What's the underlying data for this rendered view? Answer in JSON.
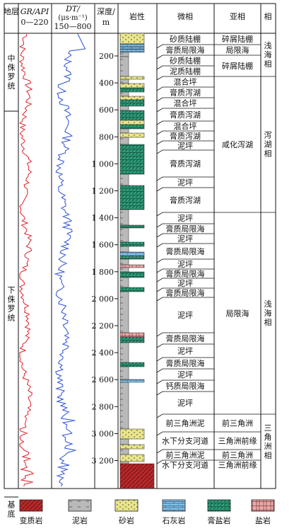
{
  "header": {
    "stratum": "地层",
    "gr_label": "GR/API",
    "gr_range": "0—220",
    "dt_label": "DT/",
    "dt_unit": "(μs·m⁻¹)",
    "dt_range": "150—800",
    "depth_label": "深度/",
    "depth_unit": "m",
    "lithology": "岩性",
    "microfacies": "微相",
    "subfacies": "亚相",
    "facies": "相"
  },
  "strata": [
    {
      "name": "中侏罗统",
      "top": 0,
      "bottom": 110
    },
    {
      "name": "下侏罗统",
      "top": 110,
      "bottom": 655
    },
    {
      "name": "基底",
      "top": 655,
      "bottom": 690
    }
  ],
  "depth_ticks": [
    "200",
    "400",
    "600",
    "800",
    "1 000",
    "1 200",
    "1 400",
    "1 600",
    "1 800",
    "2 000",
    "2 200",
    "2 400",
    "2 600",
    "2 800",
    "3 000",
    "3 200"
  ],
  "microfacies": [
    {
      "label": "砂质陆棚",
      "top": 47,
      "bottom": 63
    },
    {
      "label": "膏质局限海",
      "top": 63,
      "bottom": 78
    },
    {
      "label": "砂质陆棚",
      "top": 78,
      "bottom": 93
    },
    {
      "label": "泥质陆棚",
      "top": 93,
      "bottom": 108
    },
    {
      "label": "混合坪",
      "top": 108,
      "bottom": 123
    },
    {
      "label": "膏质泻湖",
      "top": 123,
      "bottom": 138
    },
    {
      "label": "混合坪",
      "top": 138,
      "bottom": 153
    },
    {
      "label": "膏质泻湖",
      "top": 153,
      "bottom": 171
    },
    {
      "label": "混合坪",
      "top": 171,
      "bottom": 185
    },
    {
      "label": "膏质泻湖",
      "top": 185,
      "bottom": 199
    },
    {
      "label": "泥坪",
      "top": 199,
      "bottom": 212
    },
    {
      "label": "膏质泻湖",
      "top": 212,
      "bottom": 250
    },
    {
      "label": "泥坪",
      "top": 250,
      "bottom": 265
    },
    {
      "label": "膏质泻湖",
      "top": 265,
      "bottom": 300
    },
    {
      "label": "泥坪",
      "top": 300,
      "bottom": 316
    },
    {
      "label": "膏质局限海",
      "top": 316,
      "bottom": 330
    },
    {
      "label": "泥坪",
      "top": 330,
      "bottom": 344
    },
    {
      "label": "膏质局限海",
      "top": 344,
      "bottom": 366
    },
    {
      "label": "泥坪",
      "top": 366,
      "bottom": 380
    },
    {
      "label": "膏质局限海",
      "top": 380,
      "bottom": 393
    },
    {
      "label": "泥坪",
      "top": 393,
      "bottom": 407
    },
    {
      "label": "膏质局限海",
      "top": 407,
      "bottom": 420
    },
    {
      "label": "泥坪",
      "top": 420,
      "bottom": 470
    },
    {
      "label": "膏质局限海",
      "top": 470,
      "bottom": 486
    },
    {
      "label": "泥坪",
      "top": 486,
      "bottom": 505
    },
    {
      "label": "膏质局限海",
      "top": 505,
      "bottom": 521
    },
    {
      "label": "泥坪",
      "top": 521,
      "bottom": 537
    },
    {
      "label": "钙质局限海",
      "top": 537,
      "bottom": 553
    },
    {
      "label": "泥坪",
      "top": 553,
      "bottom": 585
    },
    {
      "label": "前三角洲泥",
      "top": 585,
      "bottom": 610
    },
    {
      "label": "水下分支河道",
      "top": 610,
      "bottom": 635
    },
    {
      "label": "前三角洲泥",
      "top": 635,
      "bottom": 650
    },
    {
      "label": "水下分支河道",
      "top": 650,
      "bottom": 663
    }
  ],
  "subfacies": [
    {
      "label": "碎屑陆棚",
      "top": 47,
      "bottom": 63
    },
    {
      "label": "局限海",
      "top": 63,
      "bottom": 78
    },
    {
      "label": "碎屑陆棚",
      "top": 78,
      "bottom": 108
    },
    {
      "label": "咸化泻湖",
      "top": 108,
      "bottom": 300
    },
    {
      "label": "局限海",
      "top": 300,
      "bottom": 585
    },
    {
      "label": "前三角洲",
      "top": 585,
      "bottom": 610
    },
    {
      "label": "三角洲前缘",
      "top": 610,
      "bottom": 635
    },
    {
      "label": "前三角洲",
      "top": 635,
      "bottom": 650
    },
    {
      "label": "三角洲前缘",
      "top": 650,
      "bottom": 663
    }
  ],
  "facies": [
    {
      "label": "浅海相",
      "top": 47,
      "bottom": 108
    },
    {
      "label": "泻湖相",
      "top": 108,
      "bottom": 300
    },
    {
      "label": "浅海相",
      "top": 300,
      "bottom": 585
    },
    {
      "label": "三角洲相",
      "top": 585,
      "bottom": 663
    }
  ],
  "legend": [
    {
      "key": "metamorphic",
      "label": "变质岩"
    },
    {
      "key": "mudstone",
      "label": "泥岩"
    },
    {
      "key": "sandstone",
      "label": "砂岩"
    },
    {
      "key": "limestone",
      "label": "石灰岩"
    },
    {
      "key": "gypsum",
      "label": "膏盐岩"
    },
    {
      "key": "salt",
      "label": "盐岩"
    }
  ],
  "colors": {
    "gr_curve": "#e0202a",
    "dt_curve": "#2a4fd8",
    "mudstone": "#b9b9b9",
    "sandstone": "#e9e58a",
    "limestone": "#7fc7ea",
    "gypsum": "#2e9c7a",
    "salt": "#e8a9a9",
    "metamorphic": "#b8282a"
  },
  "icons": {
    "legend_swatch": "lithology-swatch-icon"
  }
}
